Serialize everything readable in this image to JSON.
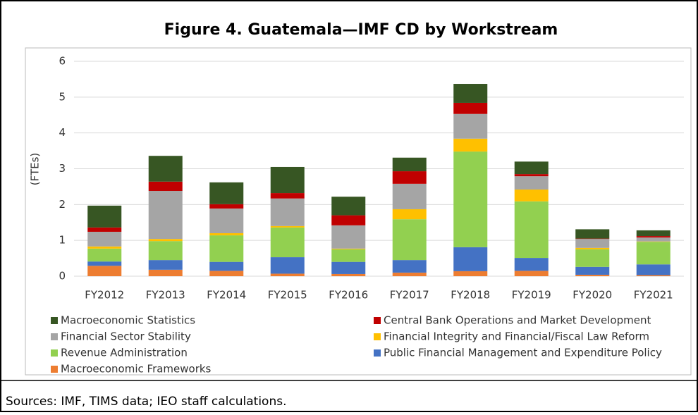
{
  "chart_data": {
    "type": "stacked_bar",
    "title": "Figure 4. Guatemala—IMF CD by Workstream",
    "y_label": "(FTEs)",
    "source": "Sources: IMF, TIMS data; IEO staff calculations.",
    "categories": [
      "FY2012",
      "FY2013",
      "FY2014",
      "FY2015",
      "FY2016",
      "FY2017",
      "FY2018",
      "FY2019",
      "FY2020",
      "FY2021"
    ],
    "ylim": [
      0,
      6
    ],
    "yticks": [
      0,
      1,
      2,
      3,
      4,
      5,
      6
    ],
    "grid": true,
    "series": [
      {
        "name": "Macroeconomic Frameworks",
        "color": "#ed7d31",
        "values": [
          0.29,
          0.18,
          0.15,
          0.07,
          0.06,
          0.1,
          0.14,
          0.15,
          0.04,
          0.03
        ]
      },
      {
        "name": "Public Financial Management and Expenditure Policy",
        "color": "#4472c4",
        "values": [
          0.12,
          0.27,
          0.25,
          0.46,
          0.34,
          0.35,
          0.67,
          0.36,
          0.22,
          0.3
        ]
      },
      {
        "name": "Revenue Administration",
        "color": "#92d050",
        "values": [
          0.36,
          0.53,
          0.74,
          0.83,
          0.35,
          1.14,
          2.67,
          1.58,
          0.49,
          0.63
        ]
      },
      {
        "name": "Financial Integrity and Financial/Fiscal Law Reform",
        "color": "#ffc000",
        "values": [
          0.06,
          0.06,
          0.06,
          0.04,
          0.02,
          0.28,
          0.36,
          0.33,
          0.04,
          0.01
        ]
      },
      {
        "name": "Financial Sector Stability",
        "color": "#a5a5a5",
        "values": [
          0.41,
          1.34,
          0.69,
          0.77,
          0.65,
          0.71,
          0.69,
          0.37,
          0.25,
          0.11
        ]
      },
      {
        "name": "Central Bank Operations and Market Development",
        "color": "#c00000",
        "values": [
          0.12,
          0.26,
          0.12,
          0.15,
          0.28,
          0.35,
          0.31,
          0.06,
          0.01,
          0.04
        ]
      },
      {
        "name": "Macroeconomic Statistics",
        "color": "#375623",
        "values": [
          0.61,
          0.72,
          0.61,
          0.73,
          0.52,
          0.38,
          0.53,
          0.35,
          0.26,
          0.16
        ]
      }
    ]
  }
}
